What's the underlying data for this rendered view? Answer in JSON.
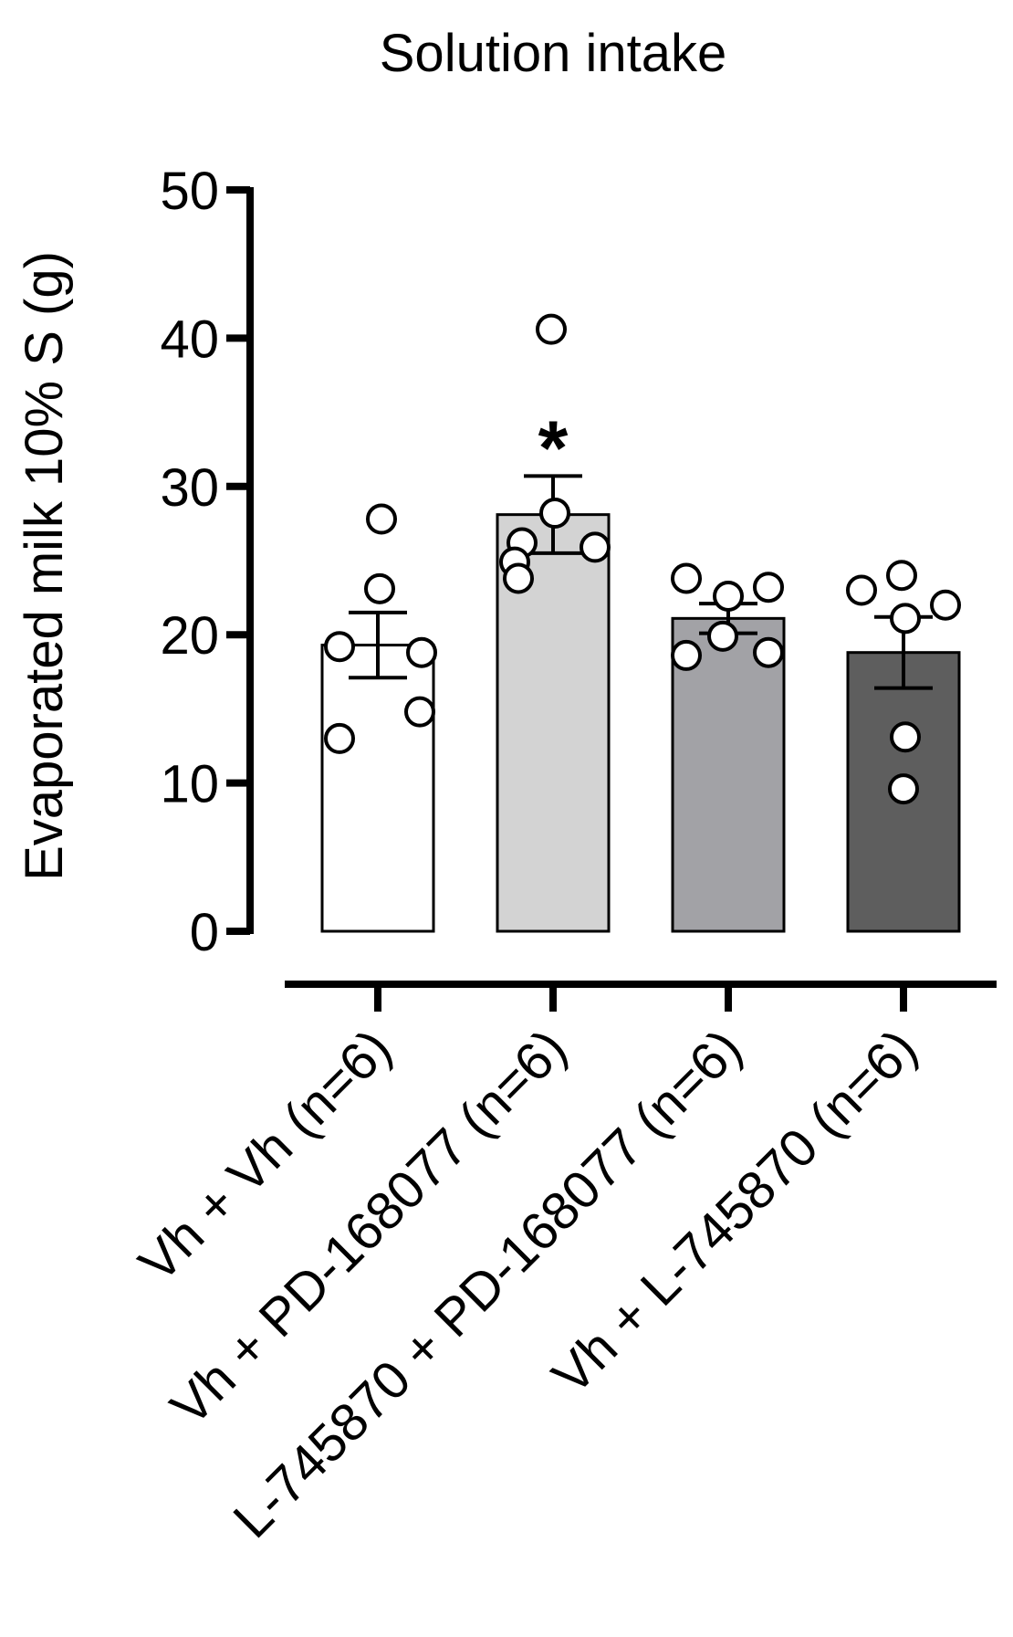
{
  "chart_data": {
    "type": "bar",
    "title": "Solution intake",
    "ylabel": "Evaporated milk 10% S (g)",
    "xlabel": "",
    "ylim": [
      0,
      50
    ],
    "yticks": [
      0,
      10,
      20,
      30,
      40,
      50
    ],
    "grid": false,
    "legend": "none",
    "categories": [
      "Vh + Vh (n=6)",
      "Vh + PD-168077 (n=6)",
      "L-745870 + PD-168077 (n=6)",
      "Vh + L-745870 (n=6)"
    ],
    "values": [
      19.3,
      28.1,
      21.1,
      18.8
    ],
    "sem": [
      2.2,
      2.6,
      1.0,
      2.4
    ],
    "bar_colors": [
      "#ffffff",
      "#d3d3d3",
      "#a2a2a6",
      "#5e5e5e"
    ],
    "points": [
      [
        27.8,
        23.1,
        19.2,
        18.8,
        14.8,
        13.0
      ],
      [
        40.6,
        28.2,
        26.2,
        25.9,
        24.9,
        23.8
      ],
      [
        23.8,
        23.2,
        22.6,
        19.9,
        18.8,
        18.6
      ],
      [
        24.0,
        23.0,
        22.0,
        21.1,
        13.1,
        9.6
      ]
    ],
    "annotations": [
      {
        "category": "Vh + PD-168077 (n=6)",
        "text": "*"
      }
    ]
  }
}
